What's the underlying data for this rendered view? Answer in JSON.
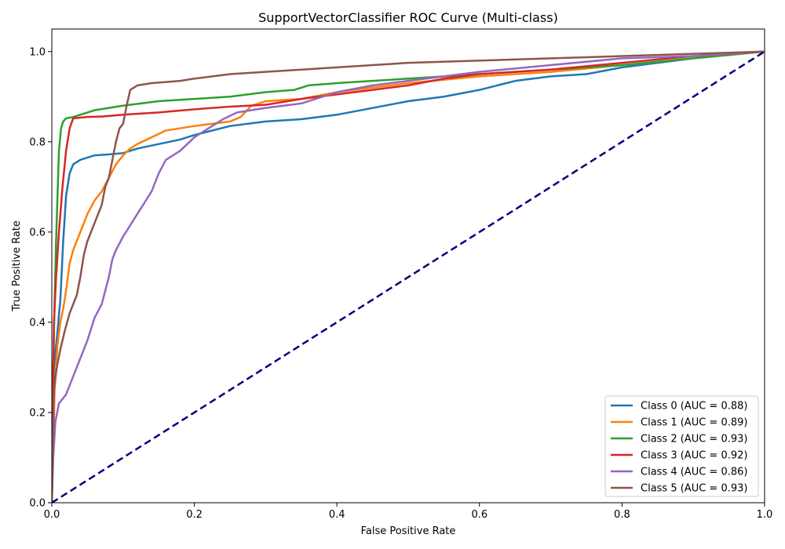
{
  "chart_data": {
    "type": "line",
    "title": "SupportVectorClassifier ROC Curve (Multi-class)",
    "xlabel": "False Positive Rate",
    "ylabel": "True Positive Rate",
    "xlim": [
      0.0,
      1.0
    ],
    "ylim": [
      0.0,
      1.05
    ],
    "xticks": [
      "0.0",
      "0.2",
      "0.4",
      "0.6",
      "0.8",
      "1.0"
    ],
    "yticks": [
      "0.0",
      "0.2",
      "0.4",
      "0.6",
      "0.8",
      "1.0"
    ],
    "grid": false,
    "legend_position": "lower-right",
    "diagonal": {
      "x": [
        0,
        1
      ],
      "y": [
        0,
        1
      ],
      "color": "#000080",
      "style": "dashed"
    },
    "series": [
      {
        "name": "Class 0 (AUC = 0.88)",
        "color": "#1f77b4",
        "x": [
          0,
          0.003,
          0.008,
          0.012,
          0.016,
          0.02,
          0.025,
          0.03,
          0.04,
          0.05,
          0.06,
          0.08,
          0.1,
          0.12,
          0.15,
          0.18,
          0.2,
          0.25,
          0.3,
          0.35,
          0.4,
          0.45,
          0.5,
          0.55,
          0.6,
          0.65,
          0.7,
          0.75,
          0.8,
          0.85,
          0.9,
          0.95,
          1.0
        ],
        "y": [
          0,
          0.3,
          0.38,
          0.45,
          0.58,
          0.68,
          0.73,
          0.75,
          0.76,
          0.765,
          0.77,
          0.772,
          0.775,
          0.785,
          0.795,
          0.805,
          0.815,
          0.835,
          0.845,
          0.85,
          0.86,
          0.875,
          0.89,
          0.9,
          0.915,
          0.935,
          0.945,
          0.95,
          0.965,
          0.975,
          0.985,
          0.995,
          1.0
        ]
      },
      {
        "name": "Class 1 (AUC = 0.89)",
        "color": "#ff7f0e",
        "x": [
          0,
          0.004,
          0.008,
          0.012,
          0.016,
          0.02,
          0.025,
          0.03,
          0.04,
          0.05,
          0.06,
          0.07,
          0.08,
          0.09,
          0.1,
          0.11,
          0.12,
          0.14,
          0.16,
          0.2,
          0.25,
          0.265,
          0.28,
          0.3,
          0.35,
          0.4,
          0.45,
          0.5,
          0.6,
          0.7,
          0.8,
          0.9,
          1.0
        ],
        "y": [
          0,
          0.25,
          0.35,
          0.4,
          0.43,
          0.47,
          0.53,
          0.56,
          0.6,
          0.64,
          0.67,
          0.69,
          0.72,
          0.75,
          0.77,
          0.785,
          0.795,
          0.81,
          0.825,
          0.835,
          0.845,
          0.855,
          0.88,
          0.89,
          0.895,
          0.91,
          0.92,
          0.93,
          0.945,
          0.955,
          0.97,
          0.985,
          1.0
        ]
      },
      {
        "name": "Class 2 (AUC = 0.93)",
        "color": "#2ca02c",
        "x": [
          0,
          0.002,
          0.004,
          0.006,
          0.008,
          0.01,
          0.013,
          0.016,
          0.02,
          0.03,
          0.04,
          0.06,
          0.08,
          0.1,
          0.15,
          0.2,
          0.25,
          0.3,
          0.34,
          0.36,
          0.4,
          0.45,
          0.5,
          0.6,
          0.7,
          0.8,
          0.9,
          1.0
        ],
        "y": [
          0,
          0.3,
          0.45,
          0.58,
          0.68,
          0.78,
          0.83,
          0.845,
          0.852,
          0.855,
          0.86,
          0.87,
          0.875,
          0.88,
          0.89,
          0.895,
          0.9,
          0.91,
          0.915,
          0.925,
          0.93,
          0.935,
          0.94,
          0.95,
          0.96,
          0.97,
          0.985,
          1.0
        ]
      },
      {
        "name": "Class 3 (AUC = 0.92)",
        "color": "#d62728",
        "x": [
          0,
          0.003,
          0.006,
          0.01,
          0.015,
          0.02,
          0.025,
          0.03,
          0.05,
          0.07,
          0.1,
          0.15,
          0.2,
          0.25,
          0.3,
          0.35,
          0.4,
          0.45,
          0.5,
          0.55,
          0.6,
          0.7,
          0.8,
          0.9,
          1.0
        ],
        "y": [
          0,
          0.4,
          0.5,
          0.6,
          0.7,
          0.78,
          0.83,
          0.852,
          0.855,
          0.856,
          0.86,
          0.865,
          0.872,
          0.878,
          0.882,
          0.895,
          0.905,
          0.915,
          0.925,
          0.94,
          0.95,
          0.96,
          0.975,
          0.99,
          1.0
        ]
      },
      {
        "name": "Class 4 (AUC = 0.86)",
        "color": "#9467bd",
        "x": [
          0,
          0.002,
          0.005,
          0.01,
          0.02,
          0.03,
          0.04,
          0.05,
          0.06,
          0.07,
          0.08,
          0.085,
          0.09,
          0.1,
          0.12,
          0.14,
          0.15,
          0.16,
          0.18,
          0.2,
          0.22,
          0.24,
          0.26,
          0.3,
          0.35,
          0.4,
          0.45,
          0.5,
          0.55,
          0.6,
          0.7,
          0.8,
          0.9,
          1.0
        ],
        "y": [
          0,
          0.1,
          0.18,
          0.22,
          0.24,
          0.28,
          0.32,
          0.36,
          0.41,
          0.44,
          0.5,
          0.54,
          0.56,
          0.59,
          0.64,
          0.69,
          0.73,
          0.76,
          0.78,
          0.81,
          0.83,
          0.85,
          0.865,
          0.875,
          0.885,
          0.91,
          0.925,
          0.935,
          0.945,
          0.955,
          0.97,
          0.985,
          0.99,
          1.0
        ]
      },
      {
        "name": "Class 5 (AUC = 0.93)",
        "color": "#8c564b",
        "x": [
          0,
          0.003,
          0.007,
          0.012,
          0.018,
          0.025,
          0.03,
          0.035,
          0.04,
          0.045,
          0.05,
          0.055,
          0.06,
          0.07,
          0.075,
          0.08,
          0.085,
          0.09,
          0.095,
          0.1,
          0.105,
          0.11,
          0.115,
          0.12,
          0.14,
          0.18,
          0.2,
          0.25,
          0.3,
          0.4,
          0.5,
          0.6,
          0.7,
          0.8,
          0.9,
          1.0
        ],
        "y": [
          0,
          0.25,
          0.3,
          0.34,
          0.38,
          0.42,
          0.44,
          0.46,
          0.5,
          0.55,
          0.58,
          0.6,
          0.62,
          0.66,
          0.7,
          0.72,
          0.76,
          0.8,
          0.83,
          0.84,
          0.88,
          0.915,
          0.92,
          0.925,
          0.93,
          0.935,
          0.94,
          0.95,
          0.955,
          0.965,
          0.975,
          0.98,
          0.985,
          0.99,
          0.995,
          1.0
        ]
      }
    ]
  }
}
